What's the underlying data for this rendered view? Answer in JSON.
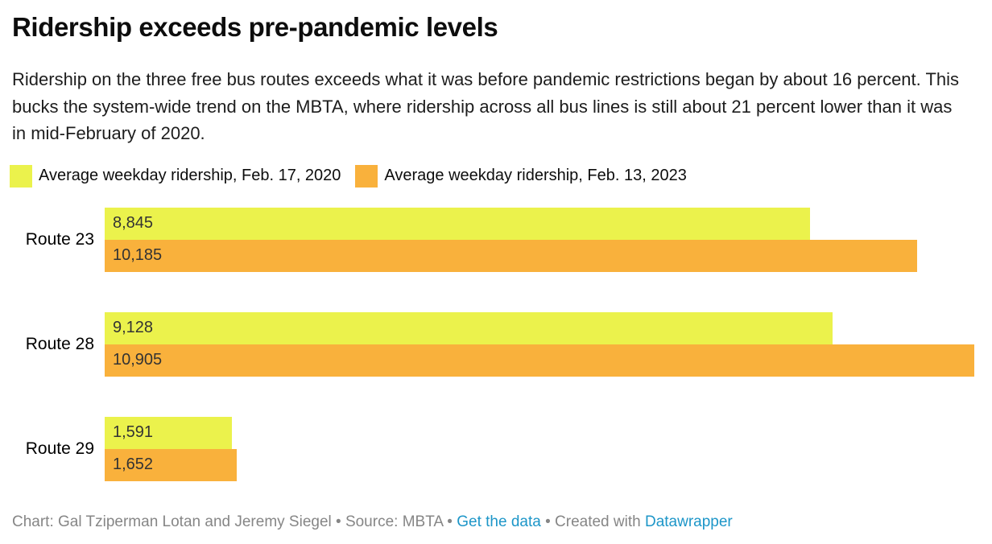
{
  "header": {
    "title": "Ridership exceeds pre-pandemic levels",
    "description": "Ridership on the three free bus routes exceeds what it was before pandemic restrictions began by about 16 percent. This bucks the system-wide trend on the MBTA, where ridership across all bus lines is still about 21 percent lower than it was in mid-February of 2020."
  },
  "legend": {
    "items": [
      {
        "label": "Average weekday ridership, Feb. 17, 2020",
        "color": "#ebf24c"
      },
      {
        "label": "Average weekday ridership, Feb. 13, 2023",
        "color": "#f9b13c"
      }
    ]
  },
  "chart_data": {
    "type": "bar",
    "orientation": "horizontal",
    "title": "Ridership exceeds pre-pandemic levels",
    "categories": [
      "Route 23",
      "Route 28",
      "Route 29"
    ],
    "series": [
      {
        "name": "Average weekday ridership, Feb. 17, 2020",
        "color": "#ebf24c",
        "values": [
          8845,
          9128,
          1591
        ],
        "labels": [
          "8,845",
          "9,128",
          "1,591"
        ]
      },
      {
        "name": "Average weekday ridership, Feb. 13, 2023",
        "color": "#f9b13c",
        "values": [
          10185,
          10905,
          1652
        ],
        "labels": [
          "10,185",
          "10,905",
          "1,652"
        ]
      }
    ],
    "xlim": [
      0,
      10905
    ],
    "grid": false,
    "legend_position": "top",
    "value_label_position": "inside-left"
  },
  "footer": {
    "part1": "Chart: Gal Tziperman Lotan and Jeremy Siegel • Source: MBTA • ",
    "link1": "Get the data",
    "part2": " • Created with ",
    "link2": "Datawrapper",
    "link_color": "#1d96c8"
  }
}
